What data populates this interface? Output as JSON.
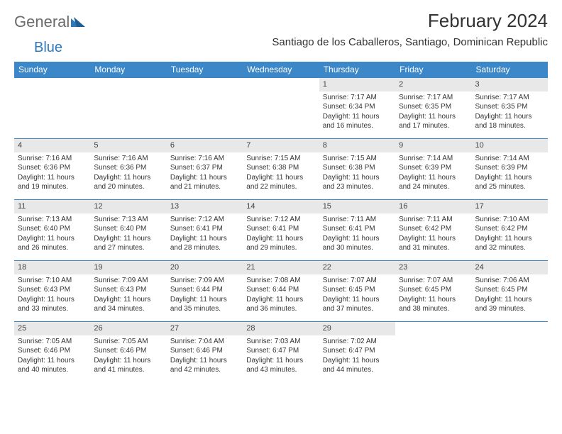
{
  "logo": {
    "general": "General",
    "blue": "Blue"
  },
  "title": "February 2024",
  "location": "Santiago de los Caballeros, Santiago, Dominican Republic",
  "colors": {
    "header_bg": "#3b87c8",
    "header_text": "#ffffff",
    "daynum_bg": "#e8e8e8",
    "rule": "#3b87c8",
    "logo_gray": "#6b6b6b",
    "logo_blue": "#2f79b9"
  },
  "weekdays": [
    "Sunday",
    "Monday",
    "Tuesday",
    "Wednesday",
    "Thursday",
    "Friday",
    "Saturday"
  ],
  "weeks": [
    [
      null,
      null,
      null,
      null,
      {
        "n": "1",
        "sr": "Sunrise: 7:17 AM",
        "ss": "Sunset: 6:34 PM",
        "dl": "Daylight: 11 hours and 16 minutes."
      },
      {
        "n": "2",
        "sr": "Sunrise: 7:17 AM",
        "ss": "Sunset: 6:35 PM",
        "dl": "Daylight: 11 hours and 17 minutes."
      },
      {
        "n": "3",
        "sr": "Sunrise: 7:17 AM",
        "ss": "Sunset: 6:35 PM",
        "dl": "Daylight: 11 hours and 18 minutes."
      }
    ],
    [
      {
        "n": "4",
        "sr": "Sunrise: 7:16 AM",
        "ss": "Sunset: 6:36 PM",
        "dl": "Daylight: 11 hours and 19 minutes."
      },
      {
        "n": "5",
        "sr": "Sunrise: 7:16 AM",
        "ss": "Sunset: 6:36 PM",
        "dl": "Daylight: 11 hours and 20 minutes."
      },
      {
        "n": "6",
        "sr": "Sunrise: 7:16 AM",
        "ss": "Sunset: 6:37 PM",
        "dl": "Daylight: 11 hours and 21 minutes."
      },
      {
        "n": "7",
        "sr": "Sunrise: 7:15 AM",
        "ss": "Sunset: 6:38 PM",
        "dl": "Daylight: 11 hours and 22 minutes."
      },
      {
        "n": "8",
        "sr": "Sunrise: 7:15 AM",
        "ss": "Sunset: 6:38 PM",
        "dl": "Daylight: 11 hours and 23 minutes."
      },
      {
        "n": "9",
        "sr": "Sunrise: 7:14 AM",
        "ss": "Sunset: 6:39 PM",
        "dl": "Daylight: 11 hours and 24 minutes."
      },
      {
        "n": "10",
        "sr": "Sunrise: 7:14 AM",
        "ss": "Sunset: 6:39 PM",
        "dl": "Daylight: 11 hours and 25 minutes."
      }
    ],
    [
      {
        "n": "11",
        "sr": "Sunrise: 7:13 AM",
        "ss": "Sunset: 6:40 PM",
        "dl": "Daylight: 11 hours and 26 minutes."
      },
      {
        "n": "12",
        "sr": "Sunrise: 7:13 AM",
        "ss": "Sunset: 6:40 PM",
        "dl": "Daylight: 11 hours and 27 minutes."
      },
      {
        "n": "13",
        "sr": "Sunrise: 7:12 AM",
        "ss": "Sunset: 6:41 PM",
        "dl": "Daylight: 11 hours and 28 minutes."
      },
      {
        "n": "14",
        "sr": "Sunrise: 7:12 AM",
        "ss": "Sunset: 6:41 PM",
        "dl": "Daylight: 11 hours and 29 minutes."
      },
      {
        "n": "15",
        "sr": "Sunrise: 7:11 AM",
        "ss": "Sunset: 6:41 PM",
        "dl": "Daylight: 11 hours and 30 minutes."
      },
      {
        "n": "16",
        "sr": "Sunrise: 7:11 AM",
        "ss": "Sunset: 6:42 PM",
        "dl": "Daylight: 11 hours and 31 minutes."
      },
      {
        "n": "17",
        "sr": "Sunrise: 7:10 AM",
        "ss": "Sunset: 6:42 PM",
        "dl": "Daylight: 11 hours and 32 minutes."
      }
    ],
    [
      {
        "n": "18",
        "sr": "Sunrise: 7:10 AM",
        "ss": "Sunset: 6:43 PM",
        "dl": "Daylight: 11 hours and 33 minutes."
      },
      {
        "n": "19",
        "sr": "Sunrise: 7:09 AM",
        "ss": "Sunset: 6:43 PM",
        "dl": "Daylight: 11 hours and 34 minutes."
      },
      {
        "n": "20",
        "sr": "Sunrise: 7:09 AM",
        "ss": "Sunset: 6:44 PM",
        "dl": "Daylight: 11 hours and 35 minutes."
      },
      {
        "n": "21",
        "sr": "Sunrise: 7:08 AM",
        "ss": "Sunset: 6:44 PM",
        "dl": "Daylight: 11 hours and 36 minutes."
      },
      {
        "n": "22",
        "sr": "Sunrise: 7:07 AM",
        "ss": "Sunset: 6:45 PM",
        "dl": "Daylight: 11 hours and 37 minutes."
      },
      {
        "n": "23",
        "sr": "Sunrise: 7:07 AM",
        "ss": "Sunset: 6:45 PM",
        "dl": "Daylight: 11 hours and 38 minutes."
      },
      {
        "n": "24",
        "sr": "Sunrise: 7:06 AM",
        "ss": "Sunset: 6:45 PM",
        "dl": "Daylight: 11 hours and 39 minutes."
      }
    ],
    [
      {
        "n": "25",
        "sr": "Sunrise: 7:05 AM",
        "ss": "Sunset: 6:46 PM",
        "dl": "Daylight: 11 hours and 40 minutes."
      },
      {
        "n": "26",
        "sr": "Sunrise: 7:05 AM",
        "ss": "Sunset: 6:46 PM",
        "dl": "Daylight: 11 hours and 41 minutes."
      },
      {
        "n": "27",
        "sr": "Sunrise: 7:04 AM",
        "ss": "Sunset: 6:46 PM",
        "dl": "Daylight: 11 hours and 42 minutes."
      },
      {
        "n": "28",
        "sr": "Sunrise: 7:03 AM",
        "ss": "Sunset: 6:47 PM",
        "dl": "Daylight: 11 hours and 43 minutes."
      },
      {
        "n": "29",
        "sr": "Sunrise: 7:02 AM",
        "ss": "Sunset: 6:47 PM",
        "dl": "Daylight: 11 hours and 44 minutes."
      },
      null,
      null
    ]
  ]
}
